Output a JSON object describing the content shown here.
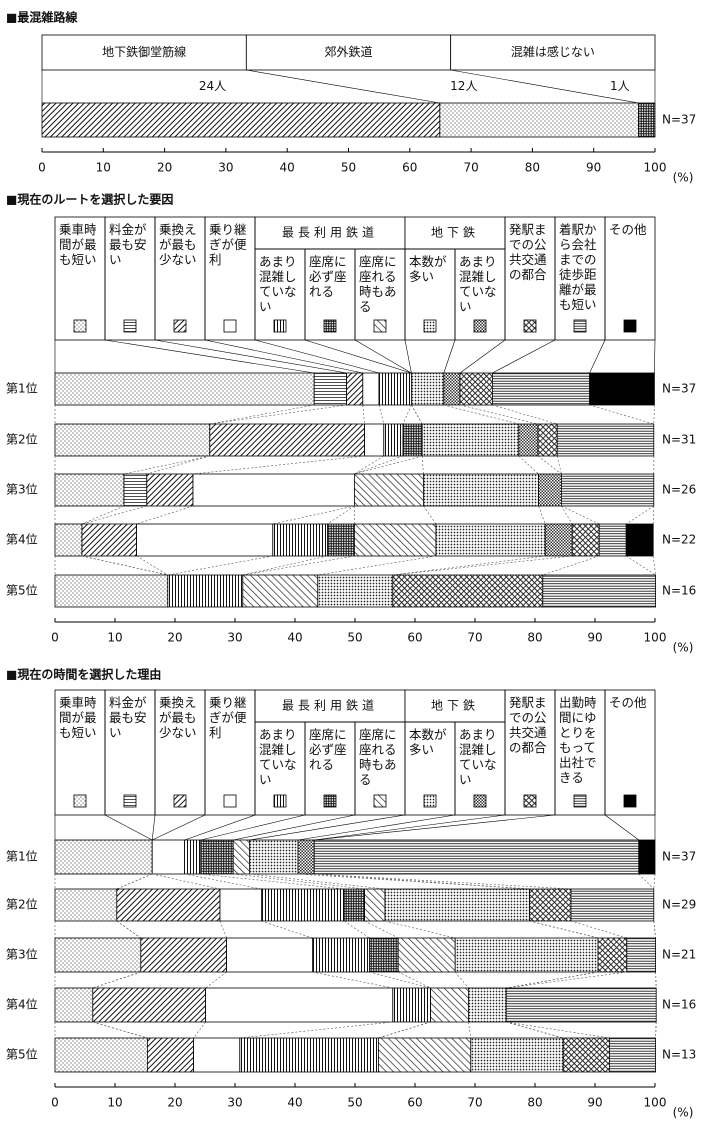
{
  "chart_data": [
    {
      "type": "bar",
      "orientation": "horizontal",
      "stacked": true,
      "legend": "boxes",
      "title": "■最混雑路線",
      "categories": [
        null
      ],
      "n_labels": [
        "N=37"
      ],
      "series": [
        {
          "name": "地下鉄御堂筋線",
          "count_label": "24人",
          "pattern": "diag",
          "color": "#000000",
          "values": [
            64.9
          ]
        },
        {
          "name": "郊外鉄道",
          "count_label": "12人",
          "pattern": "dots-fine",
          "color": "#000000",
          "values": [
            32.4
          ]
        },
        {
          "name": "混雑は感じない",
          "count_label": "1人",
          "pattern": "grid-dense",
          "color": "#000000",
          "values": [
            2.7
          ]
        }
      ],
      "xlim": [
        0,
        100
      ],
      "xticks": [
        0,
        10,
        20,
        30,
        40,
        50,
        60,
        70,
        80,
        90,
        100
      ],
      "x_unit_label": "(%)"
    },
    {
      "type": "bar",
      "orientation": "horizontal",
      "stacked": true,
      "legend": "columns",
      "title": "■現在のルートを選択した要因",
      "categories": [
        "第1位",
        "第2位",
        "第3位",
        "第4位",
        "第5位"
      ],
      "n_labels": [
        "N=37",
        "N=31",
        "N=26",
        "N=22",
        "N=16"
      ],
      "series": [
        {
          "name": "乗車時間が最も短い",
          "pattern": "dots-fine",
          "color": "#000000",
          "values": [
            43.2,
            25.8,
            11.5,
            4.5,
            18.8
          ]
        },
        {
          "name": "料金が最も安い",
          "pattern": "hlines",
          "color": "#000000",
          "values": [
            5.4,
            0,
            3.8,
            0,
            0
          ]
        },
        {
          "name": "乗換えが最も少ない",
          "pattern": "diag",
          "color": "#000000",
          "values": [
            2.7,
            25.8,
            7.7,
            9.1,
            0
          ]
        },
        {
          "name": "乗り継ぎが便利",
          "pattern": "blank",
          "color": "#000000",
          "values": [
            2.7,
            3.2,
            26.9,
            22.7,
            0
          ]
        },
        {
          "name": "あまり混雑していない",
          "group": "最長利用鉄道",
          "pattern": "vlines",
          "color": "#000000",
          "values": [
            5.4,
            3.2,
            0,
            9.1,
            12.5
          ]
        },
        {
          "name": "座席に必ず座れる",
          "group": "最長利用鉄道",
          "pattern": "grid-dense",
          "color": "#000000",
          "values": [
            0,
            3.2,
            0,
            4.5,
            0
          ]
        },
        {
          "name": "座席に座れる時もある",
          "group": "最長利用鉄道",
          "pattern": "diag2",
          "color": "#000000",
          "values": [
            0,
            0,
            11.5,
            13.6,
            12.5
          ]
        },
        {
          "name": "本数が多い",
          "group": "地下鉄",
          "pattern": "dots-dense",
          "color": "#000000",
          "values": [
            5.4,
            16.1,
            19.2,
            18.2,
            12.5
          ]
        },
        {
          "name": "あまり混雑していない",
          "group": "地下鉄",
          "pattern": "checker",
          "color": "#000000",
          "values": [
            2.7,
            3.2,
            3.8,
            4.5,
            0
          ]
        },
        {
          "name": "発駅までの公共交通の都合",
          "pattern": "cross",
          "color": "#000000",
          "values": [
            5.4,
            3.2,
            0,
            4.5,
            25.0
          ]
        },
        {
          "name": "着駅から会社までの徒歩距離が最も短い",
          "pattern": "hlines-dense",
          "color": "#000000",
          "values": [
            16.2,
            16.1,
            15.4,
            4.5,
            18.8
          ]
        },
        {
          "name": "その他",
          "pattern": "solid",
          "color": "#000000",
          "values": [
            10.8,
            0,
            0,
            4.5,
            0
          ]
        }
      ],
      "xlim": [
        0,
        100
      ],
      "xticks": [
        0,
        10,
        20,
        30,
        40,
        50,
        60,
        70,
        80,
        90,
        100
      ],
      "x_unit_label": "(%)"
    },
    {
      "type": "bar",
      "orientation": "horizontal",
      "stacked": true,
      "legend": "columns",
      "title": "■現在の時間を選択した理由",
      "categories": [
        "第1位",
        "第2位",
        "第3位",
        "第4位",
        "第5位"
      ],
      "n_labels": [
        "N=37",
        "N=29",
        "N=21",
        "N=16",
        "N=13"
      ],
      "series": [
        {
          "name": "乗車時間が最も短い",
          "pattern": "dots-fine",
          "color": "#000000",
          "values": [
            16.2,
            10.3,
            14.3,
            6.3,
            15.4
          ]
        },
        {
          "name": "料金が最も安い",
          "pattern": "hlines",
          "color": "#000000",
          "values": [
            0,
            0,
            0,
            0,
            0
          ]
        },
        {
          "name": "乗換えが最も少ない",
          "pattern": "diag",
          "color": "#000000",
          "values": [
            0,
            17.2,
            14.3,
            18.8,
            7.7
          ]
        },
        {
          "name": "乗り継ぎが便利",
          "pattern": "blank",
          "color": "#000000",
          "values": [
            5.4,
            6.9,
            14.3,
            31.2,
            7.7
          ]
        },
        {
          "name": "あまり混雑していない",
          "group": "最長利用鉄道",
          "pattern": "vlines",
          "color": "#000000",
          "values": [
            2.7,
            13.8,
            9.5,
            6.3,
            23.1
          ]
        },
        {
          "name": "座席に必ず座れる",
          "group": "最長利用鉄道",
          "pattern": "grid-dense",
          "color": "#000000",
          "values": [
            5.4,
            3.4,
            4.8,
            0,
            0
          ]
        },
        {
          "name": "座席に座れる時もある",
          "group": "最長利用鉄道",
          "pattern": "diag2",
          "color": "#000000",
          "values": [
            2.7,
            3.4,
            9.5,
            6.3,
            15.4
          ]
        },
        {
          "name": "本数が多い",
          "group": "地下鉄",
          "pattern": "dots-dense",
          "color": "#000000",
          "values": [
            8.1,
            24.1,
            23.8,
            6.3,
            15.4
          ]
        },
        {
          "name": "あまり混雑していない",
          "group": "地下鉄",
          "pattern": "checker",
          "color": "#000000",
          "values": [
            2.7,
            0,
            0,
            0,
            0
          ]
        },
        {
          "name": "発駅までの公共交通の都合",
          "pattern": "cross",
          "color": "#000000",
          "values": [
            0,
            6.9,
            4.8,
            0,
            7.7
          ]
        },
        {
          "name": "出勤時間にゆとりをもって出社できる",
          "pattern": "hlines-dense",
          "color": "#000000",
          "values": [
            54.1,
            13.8,
            4.8,
            25.0,
            7.7
          ]
        },
        {
          "name": "その他",
          "pattern": "solid",
          "color": "#000000",
          "values": [
            2.7,
            0,
            0,
            0,
            0
          ]
        }
      ],
      "xlim": [
        0,
        100
      ],
      "xticks": [
        0,
        10,
        20,
        30,
        40,
        50,
        60,
        70,
        80,
        90,
        100
      ],
      "x_unit_label": "(%)"
    }
  ]
}
